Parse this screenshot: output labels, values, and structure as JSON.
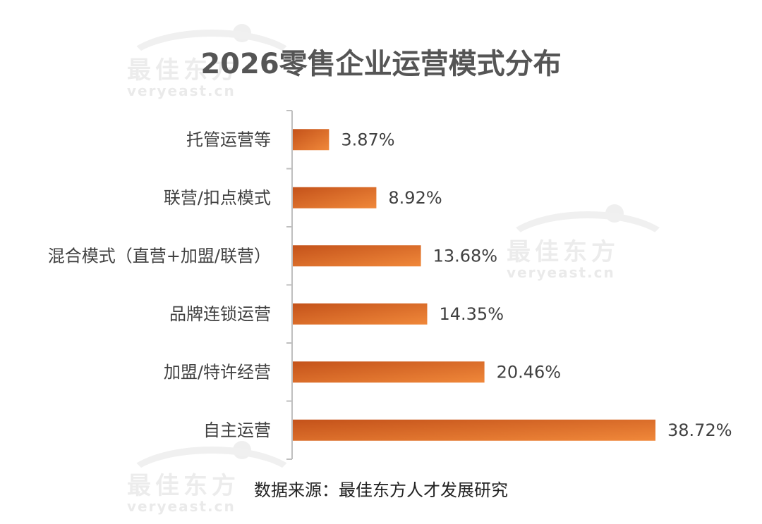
{
  "watermark": {
    "cn": "最佳东方",
    "en": "veryeast.cn"
  },
  "colors": {
    "bar_start": "#c4521a",
    "bar_end": "#f0883a",
    "axis": "#bfbfbf",
    "text": "#404040"
  },
  "chart_data": {
    "type": "bar",
    "orientation": "horizontal",
    "title": "2026零售企业运营模式分布",
    "categories": [
      "托管运营等",
      "联营/扣点模式",
      "混合模式（直营+加盟/联营）",
      "品牌连锁运营",
      "加盟/特许经营",
      "自主运营"
    ],
    "values": [
      3.87,
      8.92,
      13.68,
      14.35,
      20.46,
      38.72
    ],
    "value_labels": [
      "3.87%",
      "8.92%",
      "13.68%",
      "14.35%",
      "20.46%",
      "38.72%"
    ],
    "xlim": [
      0,
      38.72
    ],
    "grid": false,
    "legend": "none"
  },
  "source": "数据来源：最佳东方人才发展研究"
}
